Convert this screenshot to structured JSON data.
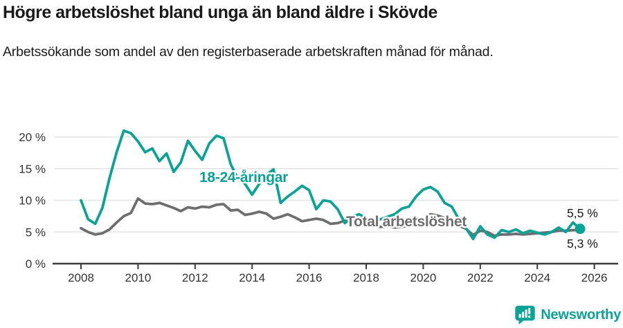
{
  "header": {
    "title": "Högre arbetslöshet bland unga än bland äldre i Skövde",
    "subtitle": "Arbetssökande som andel av den registerbaserade arbetskraften månad för månad."
  },
  "footer": {
    "brand": "Newsworthy"
  },
  "colors": {
    "teal": "#0ca295",
    "gray": "#6e6e6e",
    "axis": "#3b3b3b",
    "grid": "#e3e3e3",
    "tick_text": "#333333",
    "annotation_text": "#1a1a1a",
    "background": "#ffffff"
  },
  "chart_data": {
    "type": "line",
    "title": "Högre arbetslöshet bland unga än bland äldre i Skövde",
    "subtitle": "Arbetssökande som andel av den registerbaserade arbetskraften månad för månad.",
    "unit": "%",
    "xlabel": "",
    "ylabel": "",
    "grid": "horizontal",
    "x_range": [
      2007.6,
      2026.5
    ],
    "ylim": [
      0,
      22
    ],
    "x_ticks": [
      2008,
      2010,
      2012,
      2014,
      2016,
      2018,
      2020,
      2022,
      2024,
      2026
    ],
    "y_ticks": [
      {
        "value": 0,
        "label": "0 %"
      },
      {
        "value": 5,
        "label": "5 %"
      },
      {
        "value": 10,
        "label": "10 %"
      },
      {
        "value": 15,
        "label": "15 %"
      },
      {
        "value": 20,
        "label": "20 %"
      }
    ],
    "series": [
      {
        "name": "Total arbetslöshet",
        "color": "#6e6e6e",
        "x_start": 2008,
        "x_step": 0.25,
        "end_label": "5,3 %",
        "end_value": 5.3,
        "values": [
          5.6,
          5.0,
          4.6,
          4.8,
          5.4,
          6.5,
          7.5,
          8.0,
          10.3,
          9.5,
          9.4,
          9.6,
          9.2,
          8.8,
          8.3,
          8.9,
          8.7,
          9.0,
          8.9,
          9.3,
          9.4,
          8.4,
          8.5,
          7.7,
          7.9,
          8.2,
          7.9,
          7.1,
          7.4,
          7.8,
          7.3,
          6.7,
          6.9,
          7.1,
          6.9,
          6.3,
          6.4,
          6.8,
          6.5,
          6.3,
          6.1,
          5.9,
          5.8,
          5.9,
          5.7,
          5.8,
          6.0,
          6.3,
          6.9,
          7.8,
          7.6,
          7.2,
          6.6,
          6.0,
          5.5,
          4.5,
          5.2,
          5.0,
          4.4,
          4.6,
          4.6,
          4.7,
          4.6,
          4.7,
          4.8,
          4.9,
          5.0,
          5.2,
          5.2,
          5.3,
          5.3
        ]
      },
      {
        "name": "18-24-åringar",
        "color": "#0ca295",
        "x_start": 2008,
        "x_step": 0.25,
        "end_label": "5,5 %",
        "end_value": 5.5,
        "values": [
          10.0,
          7.0,
          6.3,
          8.8,
          13.5,
          17.6,
          21.0,
          20.6,
          19.3,
          17.6,
          18.2,
          16.2,
          17.4,
          14.5,
          16.0,
          19.4,
          17.8,
          16.4,
          19.0,
          20.2,
          19.8,
          15.7,
          13.4,
          12.6,
          10.9,
          12.6,
          14.0,
          14.9,
          9.6,
          10.6,
          11.4,
          12.3,
          11.6,
          8.6,
          10.0,
          9.8,
          8.6,
          6.4,
          7.4,
          7.8,
          7.2,
          6.8,
          7.0,
          7.4,
          7.8,
          8.7,
          9.0,
          10.6,
          11.7,
          12.1,
          11.4,
          9.6,
          9.0,
          7.0,
          5.6,
          3.9,
          5.9,
          4.6,
          4.1,
          5.3,
          5.0,
          5.4,
          4.8,
          5.2,
          4.9,
          4.6,
          5.0,
          5.7,
          5.0,
          6.5,
          5.5
        ]
      }
    ]
  }
}
